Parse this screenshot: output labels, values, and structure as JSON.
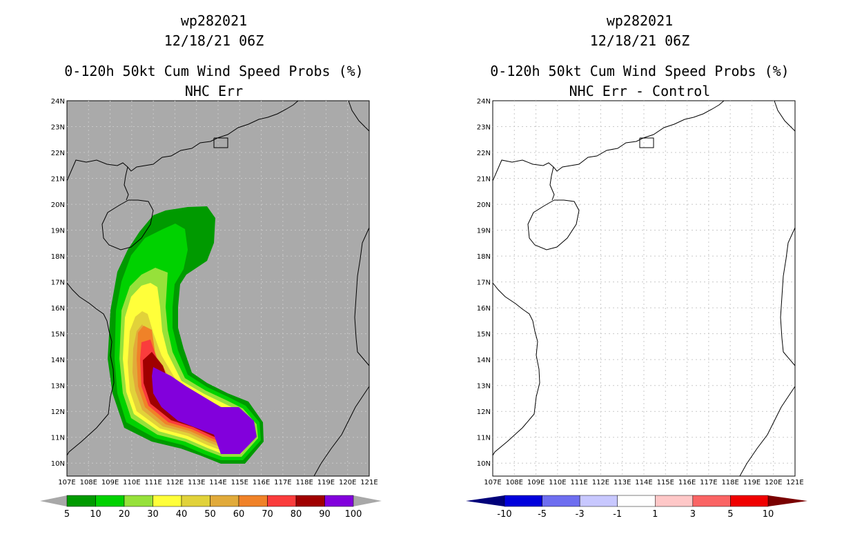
{
  "left_panel": {
    "title_line1": "wp282021",
    "title_line2": "12/18/21 06Z",
    "title_line3": "0-120h 50kt Cum Wind Speed Probs (%)",
    "title_line4": "NHC Err",
    "background_color": "#aaaaaa",
    "colorbar": {
      "colors": [
        "#009a00",
        "#00d200",
        "#96e13a",
        "#ffff3a",
        "#e1d23a",
        "#e1aa3a",
        "#f08228",
        "#fa3c3c",
        "#a00000",
        "#8200dc"
      ],
      "labels": [
        "5",
        "10",
        "20",
        "30",
        "40",
        "50",
        "60",
        "70",
        "80",
        "90",
        "100"
      ],
      "end_left": "#a8a8a8",
      "end_right": "#a8a8a8"
    }
  },
  "right_panel": {
    "title_line1": "wp282021",
    "title_line2": "12/18/21 06Z",
    "title_line3": "0-120h 50kt Cum Wind Speed Probs (%)",
    "title_line4": "NHC Err - Control",
    "background_color": "#ffffff",
    "colorbar": {
      "colors": [
        "#0000dc",
        "#6e6ef0",
        "#c8c8ff",
        "#ffffff",
        "#ffc8c8",
        "#fa6464",
        "#f00000"
      ],
      "labels": [
        "-10",
        "-5",
        "-3",
        "-1",
        "1",
        "3",
        "5",
        "10"
      ],
      "end_left": "#00007a",
      "end_right": "#7a0000"
    }
  },
  "map": {
    "lon_ticks": [
      "107E",
      "108E",
      "109E",
      "110E",
      "111E",
      "112E",
      "113E",
      "114E",
      "115E",
      "116E",
      "117E",
      "118E",
      "119E",
      "120E",
      "121E"
    ],
    "lat_ticks": [
      "10N",
      "11N",
      "12N",
      "13N",
      "14N",
      "15N",
      "16N",
      "17N",
      "18N",
      "19N",
      "20N",
      "21N",
      "22N",
      "23N",
      "24N"
    ],
    "lon_range": [
      107,
      121
    ],
    "lat_range": [
      9.5,
      24
    ]
  }
}
